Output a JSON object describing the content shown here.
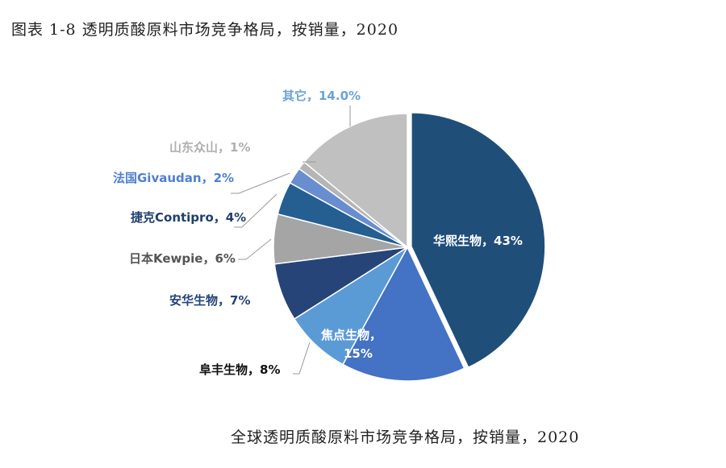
{
  "chart_data": {
    "type": "pie",
    "title": "图表 1-8 透明质酸原料市场竞争格局，按销量，2020",
    "caption": "全球透明质酸原料市场竞争格局，按销量，2020",
    "unit": "%",
    "start": "top",
    "direction": "clockwise",
    "slices": [
      {
        "name": "华熙生物",
        "value": 43,
        "label": "华熙生物，43%",
        "color": "#1f4e79",
        "label_color": "#ffffff",
        "exploded": true
      },
      {
        "name": "焦点生物",
        "value": 15,
        "label": "焦点生物，",
        "label2": "15%",
        "color": "#4472c4",
        "label_color": "#ffffff"
      },
      {
        "name": "阜丰生物",
        "value": 8,
        "label": "阜丰生物，8%",
        "color": "#5b9bd5",
        "label_color": "#111111"
      },
      {
        "name": "安华生物",
        "value": 7,
        "label": "安华生物，7%",
        "color": "#264478",
        "label_color": "#264478"
      },
      {
        "name": "日本Kewpie",
        "value": 6,
        "label": "日本Kewpie，6%",
        "color": "#a5a5a5",
        "label_color": "#555555"
      },
      {
        "name": "捷克Contipro",
        "value": 4,
        "label": "捷克Contipro，4%",
        "color": "#255e91",
        "label_color": "#1f3f6e"
      },
      {
        "name": "法国Givaudan",
        "value": 2,
        "label": "法国Givaudan，2%",
        "color": "#698ed0",
        "label_color": "#4f7fd0"
      },
      {
        "name": "山东众山",
        "value": 1,
        "label": "山东众山，1%",
        "color": "#b5b5b5",
        "label_color": "#b0b0b0"
      },
      {
        "name": "其它",
        "value": 14,
        "label": "其它，14.0%",
        "color": "#c0c0c0",
        "label_color": "#6aa3d8"
      }
    ]
  }
}
